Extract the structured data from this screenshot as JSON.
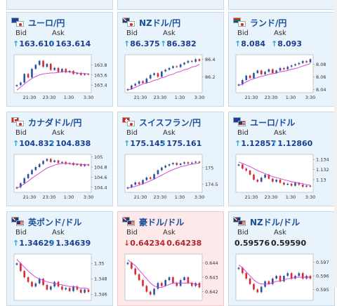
{
  "page_title": "FX rates",
  "colors": {
    "up_bar": "#2a52a8",
    "down_bar": "#e0262e",
    "ma_line": "#d23ad2",
    "ma_line2": "#1a3f9c",
    "card_up_bg": "#e8f3fb",
    "card_down_bg": "#fde9ea"
  },
  "cards": [
    {
      "pair": "ユーロ/円",
      "flags": [
        "eu-flag",
        "jp-flag"
      ],
      "bid_label": "Bid",
      "ask_label": "Ask",
      "bid": "163.610",
      "ask": "163.614",
      "direction": "up",
      "chart_data": {
        "type": "candlestick",
        "x_ticks": [
          "21:30",
          "23:30",
          "1:30",
          "3:30"
        ],
        "y_ticks": [
          "163.8",
          "163.6",
          "163.4"
        ],
        "ylim": [
          163.25,
          164.0
        ],
        "closes": [
          163.4,
          163.45,
          163.62,
          163.55,
          163.72,
          163.8,
          163.88,
          163.76,
          163.82,
          163.7,
          163.74,
          163.66,
          163.72,
          163.65,
          163.68,
          163.62,
          163.64,
          163.6,
          163.62,
          163.61
        ],
        "ma": [
          163.3,
          163.36,
          163.42,
          163.48,
          163.53,
          163.57,
          163.6,
          163.62,
          163.63,
          163.64,
          163.64,
          163.65,
          163.66,
          163.67,
          163.66,
          163.65,
          163.64,
          163.63,
          163.63,
          163.62
        ]
      }
    },
    {
      "pair": "NZドル/円",
      "flags": [
        "nz-flag",
        "jp-flag"
      ],
      "bid_label": "Bid",
      "ask_label": "Ask",
      "bid": "86.375",
      "ask": "86.382",
      "direction": "up",
      "chart_data": {
        "type": "candlestick",
        "x_ticks": [
          "21:30",
          "23:30",
          "1:30",
          "3:30"
        ],
        "y_ticks": [
          "86.4",
          "86.2"
        ],
        "ylim": [
          86.02,
          86.45
        ],
        "closes": [
          86.06,
          86.1,
          86.12,
          86.15,
          86.13,
          86.18,
          86.22,
          86.24,
          86.2,
          86.26,
          86.28,
          86.3,
          86.32,
          86.31,
          86.34,
          86.36,
          86.38,
          86.37,
          86.4,
          86.38
        ],
        "ma": [
          86.05,
          86.06,
          86.08,
          86.1,
          86.12,
          86.13,
          86.14,
          86.16,
          86.17,
          86.19,
          86.2,
          86.22,
          86.23,
          86.25,
          86.26,
          86.28,
          86.29,
          86.31,
          86.32,
          86.34
        ]
      }
    },
    {
      "pair": "ランド/円",
      "flags": [
        "za-flag",
        "jp-flag"
      ],
      "bid_label": "Bid",
      "ask_label": "Ask",
      "bid": "8.084",
      "ask": "8.093",
      "direction": "up",
      "chart_data": {
        "type": "candlestick",
        "x_ticks": [
          "21:30",
          "23:30",
          "1:30",
          "3:30"
        ],
        "y_ticks": [
          "8.08",
          "8.06",
          "8.04"
        ],
        "ylim": [
          8.035,
          8.095
        ],
        "closes": [
          8.048,
          8.055,
          8.062,
          8.058,
          8.066,
          8.07,
          8.064,
          8.068,
          8.072,
          8.066,
          8.07,
          8.074,
          8.072,
          8.076,
          8.078,
          8.08,
          8.082,
          8.085,
          8.083,
          8.088
        ],
        "ma": [
          8.046,
          8.049,
          8.052,
          8.055,
          8.057,
          8.059,
          8.061,
          8.062,
          8.064,
          8.065,
          8.066,
          8.068,
          8.069,
          8.07,
          8.072,
          8.073,
          8.075,
          8.077,
          8.079,
          8.081
        ]
      }
    },
    {
      "pair": "カナダドル/円",
      "flags": [
        "ca-flag",
        "jp-flag"
      ],
      "bid_label": "Bid",
      "ask_label": "Ask",
      "bid": "104.832",
      "ask": "104.838",
      "direction": "up",
      "chart_data": {
        "type": "candlestick",
        "x_ticks": [
          "21:30",
          "23:30",
          "1:30",
          "3:30"
        ],
        "y_ticks": [
          "105",
          "104.8",
          "104.6",
          "104.4"
        ],
        "ylim": [
          104.3,
          105.05
        ],
        "closes": [
          104.4,
          104.48,
          104.58,
          104.66,
          104.74,
          104.8,
          104.86,
          104.92,
          104.96,
          104.9,
          104.93,
          104.88,
          104.9,
          104.86,
          104.88,
          104.84,
          104.86,
          104.82,
          104.85,
          104.83
        ],
        "ma": [
          104.38,
          104.42,
          104.47,
          104.52,
          104.58,
          104.63,
          104.68,
          104.73,
          104.78,
          104.81,
          104.84,
          104.86,
          104.87,
          104.87,
          104.87,
          104.86,
          104.86,
          104.85,
          104.85,
          104.84
        ]
      }
    },
    {
      "pair": "スイスフラン/円",
      "flags": [
        "ch-flag",
        "jp-flag"
      ],
      "bid_label": "Bid",
      "ask_label": "Ask",
      "bid": "175.145",
      "ask": "175.161",
      "direction": "up",
      "chart_data": {
        "type": "candlestick",
        "x_ticks": [
          "21:30",
          "23:30",
          "1:30",
          "3:30"
        ],
        "y_ticks": [
          "175",
          "174.5"
        ],
        "ylim": [
          174.25,
          175.4
        ],
        "closes": [
          174.4,
          174.48,
          174.55,
          174.5,
          174.62,
          174.7,
          174.66,
          174.8,
          174.92,
          175.0,
          175.06,
          175.1,
          175.14,
          175.08,
          175.12,
          175.16,
          175.12,
          175.15,
          175.18,
          175.15
        ],
        "ma": [
          174.38,
          174.4,
          174.43,
          174.47,
          174.51,
          174.55,
          174.6,
          174.65,
          174.71,
          174.77,
          174.83,
          174.89,
          174.94,
          174.98,
          175.02,
          175.05,
          175.08,
          175.1,
          175.12,
          175.14
        ]
      }
    },
    {
      "pair": "ユーロ/ドル",
      "flags": [
        "eu-flag",
        "us-flag"
      ],
      "bid_label": "Bid",
      "ask_label": "Ask",
      "bid": "1.12857",
      "ask": "1.12860",
      "direction": "up",
      "chart_data": {
        "type": "candlestick",
        "x_ticks": [
          "21:30",
          "23:30",
          "1:30",
          "3:30"
        ],
        "y_ticks": [
          "1.134",
          "1.132",
          "1.13"
        ],
        "ylim": [
          1.1275,
          1.135
        ],
        "closes": [
          1.133,
          1.1322,
          1.1318,
          1.131,
          1.13,
          1.1296,
          1.1304,
          1.131,
          1.1302,
          1.1296,
          1.13,
          1.1294,
          1.129,
          1.1292,
          1.1288,
          1.1294,
          1.129,
          1.1286,
          1.1288,
          1.1286
        ],
        "ma": [
          1.1335,
          1.1332,
          1.1329,
          1.1326,
          1.1322,
          1.1318,
          1.1315,
          1.1312,
          1.1309,
          1.1306,
          1.1304,
          1.1302,
          1.13,
          1.1298,
          1.1296,
          1.1295,
          1.1293,
          1.1292,
          1.129,
          1.1289
        ]
      }
    },
    {
      "pair": "英ポンド/ドル",
      "flags": [
        "gb-flag",
        "us-flag"
      ],
      "bid_label": "Bid",
      "ask_label": "Ask",
      "bid": "1.34629",
      "ask": "1.34639",
      "direction": "up",
      "chart_data": {
        "type": "candlestick",
        "x_ticks": [],
        "y_ticks": [
          "1.35",
          "1.348",
          "1.346"
        ],
        "ylim": [
          1.3452,
          1.3512
        ],
        "closes": [
          1.35,
          1.349,
          1.3482,
          1.3476,
          1.347,
          1.3474,
          1.348,
          1.3472,
          1.3466,
          1.347,
          1.3476,
          1.347,
          1.3466,
          1.3468,
          1.3464,
          1.347,
          1.3466,
          1.3462,
          1.3466,
          1.3463
        ],
        "ma": [
          1.3505,
          1.35,
          1.3495,
          1.349,
          1.3486,
          1.3482,
          1.348,
          1.3478,
          1.3476,
          1.3475,
          1.3474,
          1.3473,
          1.3472,
          1.3471,
          1.347,
          1.347,
          1.3469,
          1.3468,
          1.3468,
          1.3467
        ]
      }
    },
    {
      "pair": "豪ドル/ドル",
      "flags": [
        "au-flag",
        "us-flag"
      ],
      "bid_label": "Bid",
      "ask_label": "Ask",
      "bid": "0.64234",
      "ask": "0.64238",
      "direction": "down",
      "chart_data": {
        "type": "candlestick",
        "x_ticks": [],
        "y_ticks": [
          "0.644",
          "0.643",
          "0.642"
        ],
        "ylim": [
          0.6414,
          0.6446
        ],
        "closes": [
          0.644,
          0.6436,
          0.6432,
          0.6428,
          0.6424,
          0.642,
          0.6418,
          0.6422,
          0.6426,
          0.6424,
          0.6428,
          0.643,
          0.6426,
          0.6424,
          0.6428,
          0.643,
          0.6426,
          0.6424,
          0.6426,
          0.6423
        ],
        "ma": [
          0.6442,
          0.644,
          0.6438,
          0.6435,
          0.6432,
          0.6429,
          0.6426,
          0.6424,
          0.6423,
          0.6423,
          0.6424,
          0.6425,
          0.6426,
          0.6426,
          0.6426,
          0.6426,
          0.6426,
          0.6426,
          0.6425,
          0.6425
        ]
      }
    },
    {
      "pair": "NZドル/ドル",
      "flags": [
        "nz-flag",
        "us-flag"
      ],
      "bid_label": "Bid",
      "ask_label": "Ask",
      "bid": "0.59576",
      "ask": "0.59590",
      "direction": "flat",
      "chart_data": {
        "type": "candlestick",
        "x_ticks": [],
        "y_ticks": [
          "0.597",
          "0.596",
          "0.595"
        ],
        "ylim": [
          0.5942,
          0.5976
        ],
        "closes": [
          0.5966,
          0.5962,
          0.5958,
          0.5954,
          0.595,
          0.5948,
          0.5952,
          0.5956,
          0.5954,
          0.5958,
          0.596,
          0.5956,
          0.596,
          0.5962,
          0.5958,
          0.596,
          0.5962,
          0.5958,
          0.596,
          0.5958
        ],
        "ma": [
          0.5968,
          0.5966,
          0.5963,
          0.596,
          0.5957,
          0.5955,
          0.5954,
          0.5954,
          0.5954,
          0.5955,
          0.5956,
          0.5956,
          0.5957,
          0.5958,
          0.5958,
          0.5959,
          0.5959,
          0.5959,
          0.5959,
          0.5959
        ]
      }
    }
  ]
}
